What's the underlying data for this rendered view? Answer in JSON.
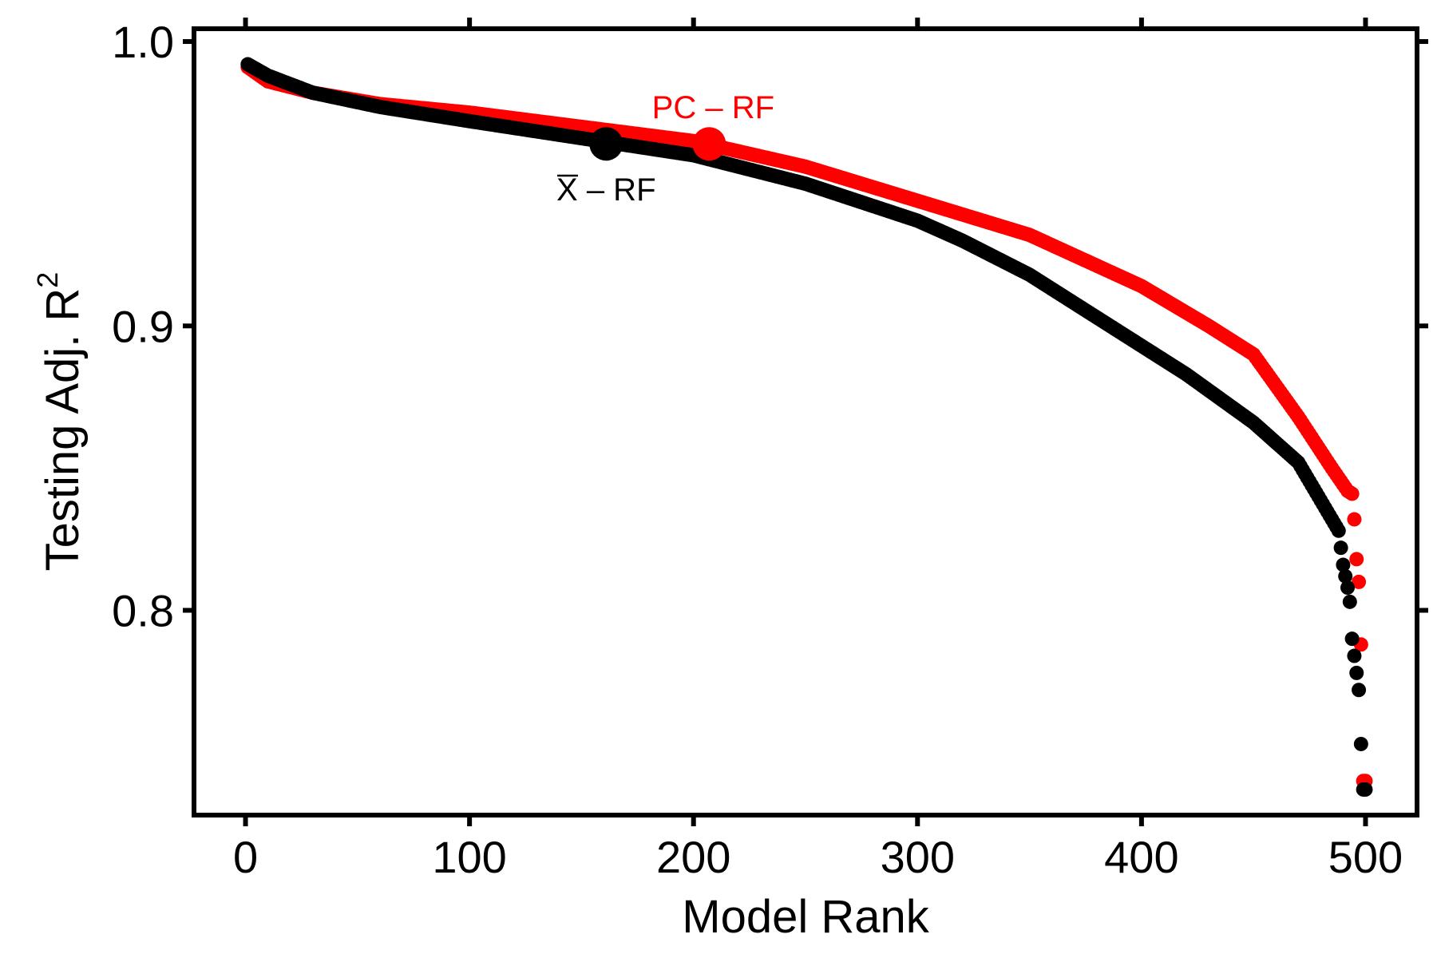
{
  "chart_data": {
    "type": "scatter",
    "xlabel": "Model Rank",
    "ylabel_main": "Testing  Adj. R",
    "ylabel_superscript": "2",
    "xlim": [
      -23,
      523
    ],
    "ylim": [
      0.728,
      1.0045
    ],
    "x_ticks": [
      0,
      100,
      200,
      300,
      400,
      500
    ],
    "x_tick_labels": [
      "0",
      "100",
      "200",
      "300",
      "400",
      "500"
    ],
    "y_ticks": [
      0.8,
      0.9,
      1.0
    ],
    "y_tick_labels": [
      "0.8",
      "0.9",
      "1.0"
    ],
    "grid": false,
    "legend": "none",
    "series": [
      {
        "color": "#ff0000",
        "n_points": 500,
        "key_points": [
          [
            1,
            0.991
          ],
          [
            10,
            0.986
          ],
          [
            30,
            0.982
          ],
          [
            60,
            0.978
          ],
          [
            100,
            0.975
          ],
          [
            150,
            0.97
          ],
          [
            200,
            0.965
          ],
          [
            250,
            0.956
          ],
          [
            300,
            0.944
          ],
          [
            350,
            0.932
          ],
          [
            400,
            0.914
          ],
          [
            430,
            0.9
          ],
          [
            450,
            0.89
          ],
          [
            470,
            0.868
          ],
          [
            485,
            0.85
          ],
          [
            492,
            0.842
          ],
          [
            494,
            0.841
          ],
          [
            495,
            0.832
          ],
          [
            496,
            0.818
          ],
          [
            497,
            0.81
          ],
          [
            498,
            0.788
          ],
          [
            499,
            0.74
          ]
        ],
        "highlight": {
          "x": 207,
          "y": 0.964,
          "label": "PC – RF"
        }
      },
      {
        "color": "#000000",
        "n_points": 500,
        "key_points": [
          [
            1,
            0.992
          ],
          [
            10,
            0.988
          ],
          [
            30,
            0.982
          ],
          [
            60,
            0.977
          ],
          [
            100,
            0.972
          ],
          [
            150,
            0.966
          ],
          [
            200,
            0.96
          ],
          [
            250,
            0.95
          ],
          [
            300,
            0.937
          ],
          [
            320,
            0.93
          ],
          [
            350,
            0.918
          ],
          [
            400,
            0.893
          ],
          [
            420,
            0.883
          ],
          [
            450,
            0.866
          ],
          [
            470,
            0.852
          ],
          [
            485,
            0.832
          ],
          [
            488,
            0.828
          ],
          [
            490,
            0.816
          ],
          [
            492,
            0.808
          ],
          [
            493,
            0.803
          ],
          [
            494,
            0.79
          ],
          [
            497,
            0.772
          ],
          [
            498,
            0.753
          ],
          [
            499,
            0.737
          ]
        ],
        "highlight": {
          "x": 161,
          "y": 0.964,
          "label": "X – RF"
        }
      }
    ]
  }
}
